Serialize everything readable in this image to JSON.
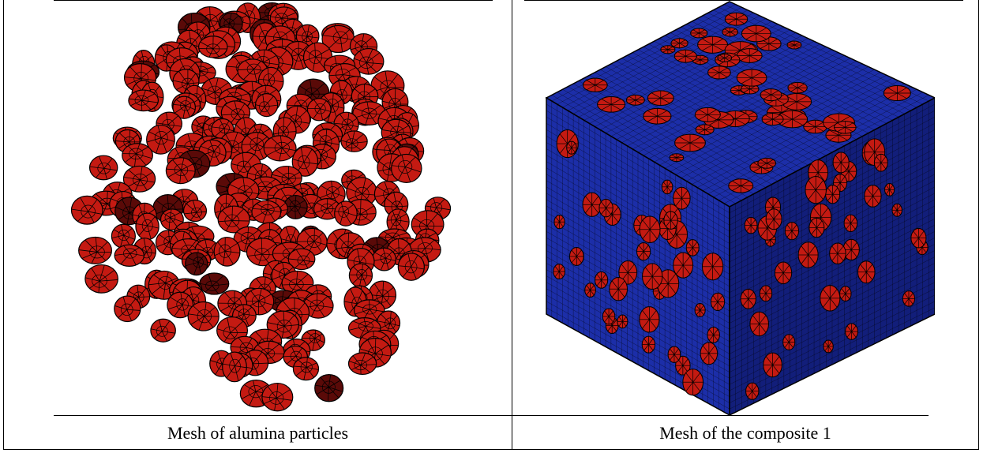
{
  "figure": {
    "panels": [
      {
        "caption": "Mesh of alumina particles",
        "image": "alumina-particle-mesh"
      },
      {
        "caption": "Mesh of the composite 1",
        "image": "composite-cube-mesh"
      }
    ],
    "colors": {
      "particle_red": "#c41a12",
      "particle_dark": "#5a0a08",
      "matrix_blue": "#1c2ea8",
      "matrix_blue_dark": "#121e7a",
      "mesh_line": "#000000"
    }
  }
}
